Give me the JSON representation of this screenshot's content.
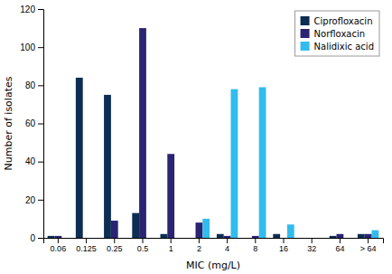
{
  "chart_data": {
    "type": "bar",
    "categories": [
      "0.06",
      "0.125",
      "0.25",
      "0.5",
      "1",
      "2",
      "4",
      "8",
      "16",
      "32",
      "64",
      "> 64"
    ],
    "series": [
      {
        "name": "Ciprofloxacin",
        "color": "#0d2d52",
        "values": [
          1,
          84,
          75,
          13,
          2,
          0,
          2,
          0,
          2,
          0,
          1,
          2
        ]
      },
      {
        "name": "Norfloxacin",
        "color": "#2a2472",
        "values": [
          1,
          0,
          9,
          110,
          44,
          8,
          1,
          1,
          0,
          0,
          2,
          2
        ]
      },
      {
        "name": "Nalidixic acid",
        "color": "#33bbee",
        "values": [
          0,
          0,
          0,
          0,
          0,
          10,
          78,
          79,
          7,
          0,
          0,
          4
        ]
      }
    ],
    "xlabel": "MIC (mg/L)",
    "ylabel": "Number of isolates",
    "ylim": [
      0,
      120
    ],
    "yticks": [
      0,
      20,
      40,
      60,
      80,
      100,
      120
    ],
    "grid": false,
    "legend": "upper right"
  }
}
